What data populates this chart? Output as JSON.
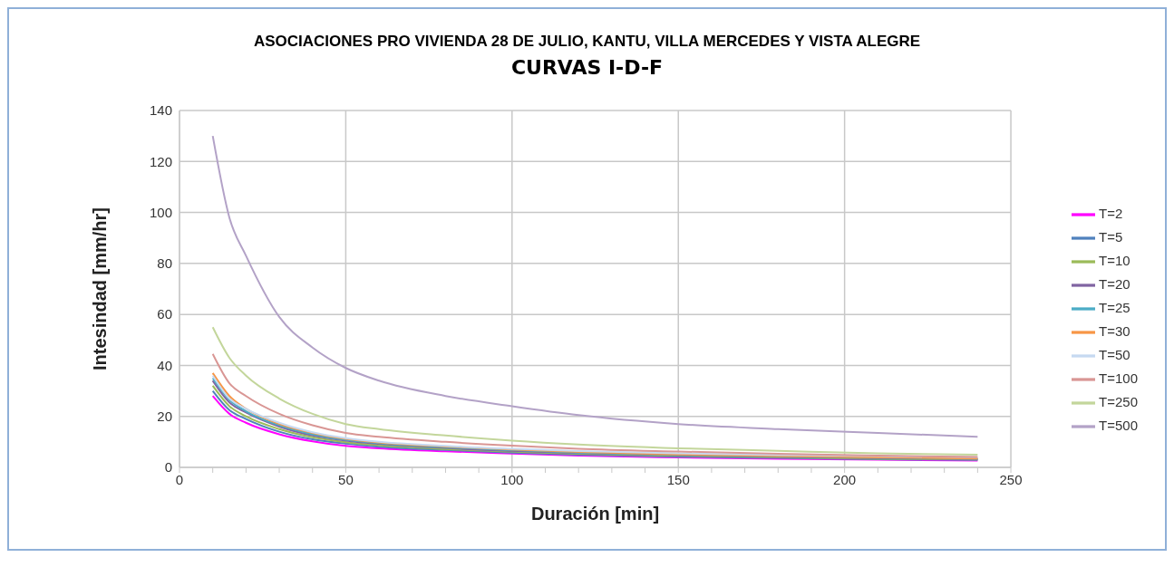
{
  "chart_data": {
    "type": "line",
    "title": "ASOCIACIONES PRO VIVIENDA 28 DE JULIO, KANTU, VILLA MERCEDES Y VISTA ALEGRE",
    "subtitle": "CURVAS  I-D-F",
    "xlabel": "Duración [min]",
    "ylabel": "Intesindad [mm/hr]",
    "x": [
      10,
      15,
      20,
      30,
      40,
      50,
      60,
      80,
      100,
      120,
      150,
      180,
      210,
      240
    ],
    "series": [
      {
        "name": "T=2",
        "color": "#ff00ff",
        "values": [
          28,
          21,
          17.5,
          13,
          10.2,
          8.4,
          7.5,
          6.3,
          5.4,
          4.6,
          3.9,
          3.4,
          3,
          2.7
        ]
      },
      {
        "name": "T=5",
        "color": "#4f81bd",
        "values": [
          30,
          22.5,
          19,
          14,
          11,
          9.3,
          8.1,
          6.8,
          5.8,
          5,
          4.2,
          3.7,
          3.2,
          2.9
        ]
      },
      {
        "name": "T=10",
        "color": "#9bbb59",
        "values": [
          32,
          24,
          20,
          15,
          11.8,
          9.9,
          8.7,
          7.2,
          6.2,
          5.3,
          4.5,
          3.9,
          3.4,
          3.1
        ]
      },
      {
        "name": "T=20",
        "color": "#8064a2",
        "values": [
          34,
          25.5,
          21.5,
          16,
          12.5,
          10.5,
          9.2,
          7.6,
          6.5,
          5.6,
          4.7,
          4.1,
          3.6,
          3.3
        ]
      },
      {
        "name": "T=25",
        "color": "#4bacc6",
        "values": [
          35,
          26.5,
          22,
          16.5,
          13,
          10.8,
          9.5,
          7.9,
          6.8,
          5.8,
          4.9,
          4.3,
          3.8,
          3.4
        ]
      },
      {
        "name": "T=30",
        "color": "#f79646",
        "values": [
          37,
          28,
          23,
          17,
          13.5,
          11.2,
          9.8,
          8.2,
          7,
          6,
          5.1,
          4.4,
          3.9,
          3.5
        ]
      },
      {
        "name": "T=50",
        "color": "#c6d9f1",
        "values": [
          36,
          27,
          23,
          17.5,
          13.8,
          11.5,
          10,
          8.4,
          7.3,
          6.4,
          5.5,
          4.9,
          4.4,
          4
        ]
      },
      {
        "name": "T=100",
        "color": "#d99694",
        "values": [
          44.5,
          33,
          28,
          21,
          16.5,
          13.5,
          12,
          10,
          8.5,
          7.3,
          6.2,
          5.3,
          4.6,
          4.1
        ]
      },
      {
        "name": "T=250",
        "color": "#c3d69b",
        "values": [
          55,
          43,
          36,
          27,
          21,
          17,
          15,
          12.5,
          10.5,
          9,
          7.5,
          6.5,
          5.5,
          5
        ]
      },
      {
        "name": "T=500",
        "color": "#b3a2c7",
        "values": [
          130,
          98,
          83,
          59,
          47,
          39,
          34,
          28,
          24,
          20.5,
          17,
          15,
          13.5,
          12
        ]
      }
    ],
    "xlim": [
      0,
      250
    ],
    "ylim": [
      0,
      140
    ],
    "xticks": [
      0,
      {
        "value": 10,
        "label": null
      },
      {
        "value": 20,
        "label": null
      },
      {
        "value": 30,
        "label": null
      },
      {
        "value": 40,
        "label": null
      },
      50,
      {
        "value": 60,
        "label": null
      },
      {
        "value": 70,
        "label": null
      },
      {
        "value": 80,
        "label": null
      },
      {
        "value": 90,
        "label": null
      },
      100,
      {
        "value": 110,
        "label": null
      },
      {
        "value": 120,
        "label": null
      },
      {
        "value": 130,
        "label": null
      },
      {
        "value": 140,
        "label": null
      },
      150,
      {
        "value": 160,
        "label": null
      },
      {
        "value": 170,
        "label": null
      },
      {
        "value": 180,
        "label": null
      },
      {
        "value": 190,
        "label": null
      },
      200,
      {
        "value": 210,
        "label": null
      },
      {
        "value": 220,
        "label": null
      },
      {
        "value": 230,
        "label": null
      },
      {
        "value": 240,
        "label": null
      },
      250
    ],
    "yticks": [
      0,
      20,
      40,
      60,
      80,
      100,
      120,
      140
    ],
    "grid": true,
    "legend": "right",
    "marker": "none",
    "line_style": "solid"
  }
}
